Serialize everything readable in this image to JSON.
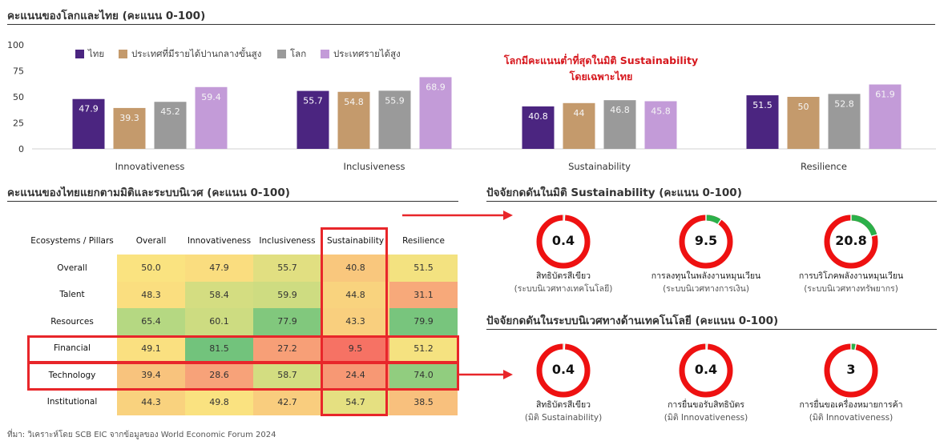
{
  "bar_section": {
    "title": "คะแนนของโลกและไทย (คะแนน 0-100)",
    "annotation": [
      "โลกมีคะแนนต่ำที่สุดในมิติ Sustainability",
      "โดยเฉพาะไทย"
    ]
  },
  "heatmap_section": {
    "title": "คะแนนของไทยแยกตามมิติและระบบนิเวศ (คะแนน 0-100)"
  },
  "donut_section_1": {
    "title": "ปัจจัยกดดันในมิติ Sustainability (คะแนน 0-100)"
  },
  "donut_section_2": {
    "title": "ปัจจัยกดดันในระบบนิเวศทางด้านเทคโนโลยี (คะแนน 0-100)"
  },
  "source_note": "ที่มา: วิเคราะห์โดย SCB EIC จากข้อมูลของ World Economic Forum 2024",
  "colors": {
    "thai": "#4b2580",
    "upper_middle": "#c49a6c",
    "world": "#9a9a9a",
    "high_income": "#c39bd8",
    "accent_red": "#e8262a",
    "donut_red": "#ee1111",
    "donut_green": "#2bb04a"
  },
  "chart_data": [
    {
      "type": "bar",
      "categories": [
        "Innovativeness",
        "Inclusiveness",
        "Sustainability",
        "Resilience"
      ],
      "series": [
        {
          "name": "ไทย",
          "color": "#4b2580",
          "values": [
            47.9,
            55.7,
            40.8,
            51.5
          ]
        },
        {
          "name": "ประเทศที่มีรายได้ปานกลางขั้นสูง",
          "color": "#c49a6c",
          "values": [
            39.3,
            54.8,
            44,
            50
          ]
        },
        {
          "name": "โลก",
          "color": "#9a9a9a",
          "values": [
            45.2,
            55.9,
            46.8,
            52.8
          ]
        },
        {
          "name": "ประเทศรายได้สูง",
          "color": "#c39bd8",
          "values": [
            59.4,
            68.9,
            45.8,
            61.9
          ]
        }
      ],
      "yticks": [
        "0",
        "25",
        "50",
        "75",
        "100"
      ],
      "ylim": [
        0,
        100
      ],
      "legend": "top-left",
      "grid": false
    },
    {
      "type": "heatmap",
      "corner_label": "Ecosystems / Pillars",
      "columns": [
        "Overall",
        "Innovativeness",
        "Inclusiveness",
        "Sustainability",
        "Resilience"
      ],
      "rows": [
        {
          "label": "Overall",
          "values": [
            50.0,
            47.9,
            55.7,
            40.8,
            51.5
          ],
          "text": [
            "50.0",
            "47.9",
            "55.7",
            "40.8",
            "51.5"
          ]
        },
        {
          "label": "Talent",
          "values": [
            48.3,
            58.4,
            59.9,
            44.8,
            31.1
          ],
          "text": [
            "48.3",
            "58.4",
            "59.9",
            "44.8",
            "31.1"
          ]
        },
        {
          "label": "Resources",
          "values": [
            65.4,
            60.1,
            77.9,
            43.3,
            79.9
          ],
          "text": [
            "65.4",
            "60.1",
            "77.9",
            "43.3",
            "79.9"
          ]
        },
        {
          "label": "Financial",
          "values": [
            49.1,
            81.5,
            27.2,
            9.5,
            51.2
          ],
          "text": [
            "49.1",
            "81.5",
            "27.2",
            "9.5",
            "51.2"
          ]
        },
        {
          "label": "Technology",
          "values": [
            39.4,
            28.6,
            58.7,
            24.4,
            74.0
          ],
          "text": [
            "39.4",
            "28.6",
            "58.7",
            "24.4",
            "74.0"
          ]
        },
        {
          "label": "Institutional",
          "values": [
            44.3,
            49.8,
            42.7,
            54.7,
            38.5
          ],
          "text": [
            "44.3",
            "49.8",
            "42.7",
            "54.7",
            "38.5"
          ]
        }
      ],
      "highlight_column": "Sustainability",
      "highlight_rows": [
        "Financial",
        "Technology"
      ]
    },
    {
      "type": "pie",
      "donuts": [
        {
          "value": 0.4,
          "label": "0.4",
          "name": "สิทธิบัตรสีเขียว",
          "sub": "(ระบบนิเวศทางเทคโนโลยี)"
        },
        {
          "value": 9.5,
          "label": "9.5",
          "name": "การลงทุนในพลังงานหมุนเวียน",
          "sub": "(ระบบนิเวศทางการเงิน)"
        },
        {
          "value": 20.8,
          "label": "20.8",
          "name": "การบริโภคพลังงานหมุนเวียน",
          "sub": "(ระบบนิเวศทางทรัพยากร)"
        }
      ],
      "scale_max": 100
    },
    {
      "type": "pie",
      "donuts": [
        {
          "value": 0.4,
          "label": "0.4",
          "name": "สิทธิบัตรสีเขียว",
          "sub": "(มิติ Sustainability)"
        },
        {
          "value": 0.4,
          "label": "0.4",
          "name": "การยื่นขอรับสิทธิบัตร",
          "sub": "(มิติ Innovativeness)"
        },
        {
          "value": 3,
          "label": "3",
          "name": "การยื่นขอเครื่องหมายการค้า",
          "sub": "(มิติ Innovativeness)"
        }
      ],
      "scale_max": 100
    }
  ]
}
